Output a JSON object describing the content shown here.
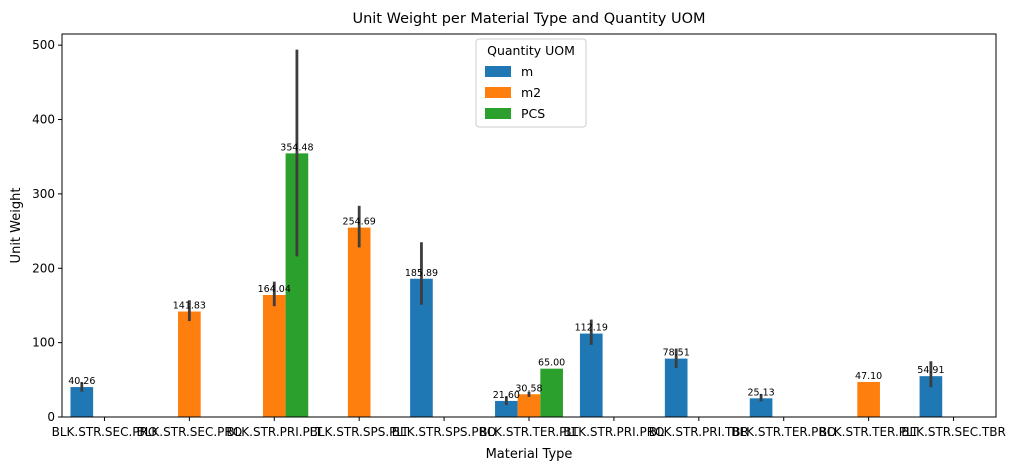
{
  "chart_data": {
    "type": "bar",
    "title": "Unit Weight per Material Type and Quantity UOM",
    "xlabel": "Material Type",
    "ylabel": "Unit Weight",
    "ylim": [
      0,
      515
    ],
    "yticks": [
      0,
      100,
      200,
      300,
      400,
      500
    ],
    "grid": false,
    "legend": {
      "title": "Quantity UOM",
      "placement": "upper-center"
    },
    "categories": [
      "BLK.STR.SEC.PRO",
      "BLK.STR.SEC.PRO",
      "BLK.STR.PRI.PLT",
      "BLK.STR.SPS.PLT",
      "BLK.STR.SPS.PRO",
      "BLK.STR.TER.PLT",
      "BLK.STR.PRI.PRO",
      "BLK.STR.PRI.TBR",
      "BLK.STR.TER.PRO",
      "BLK.STR.TER.PLT",
      "BLK.STR.SEC.TBR"
    ],
    "series": [
      {
        "name": "m",
        "color": "#1f77b4",
        "values": [
          40.26,
          null,
          null,
          null,
          185.89,
          21.6,
          112.19,
          78.51,
          25.13,
          null,
          54.91
        ],
        "err_low": [
          34,
          null,
          null,
          null,
          151,
          16,
          97,
          66,
          21,
          null,
          40
        ],
        "err_high": [
          47,
          null,
          null,
          null,
          235,
          28,
          131,
          92,
          31,
          null,
          75
        ]
      },
      {
        "name": "m2",
        "color": "#ff7f0e",
        "values": [
          null,
          141.83,
          164.04,
          254.69,
          null,
          30.58,
          null,
          null,
          null,
          47.1,
          null
        ],
        "err_low": [
          null,
          129,
          149,
          228,
          null,
          27,
          null,
          null,
          null,
          null,
          null
        ],
        "err_high": [
          null,
          157,
          182,
          284,
          null,
          34,
          null,
          null,
          null,
          null,
          null
        ]
      },
      {
        "name": "PCS",
        "color": "#2ca02c",
        "values": [
          null,
          null,
          354.48,
          null,
          null,
          65.0,
          null,
          null,
          null,
          null,
          null
        ],
        "err_low": [
          null,
          null,
          216,
          null,
          null,
          null,
          null,
          null,
          null,
          null,
          null
        ],
        "err_high": [
          null,
          null,
          494,
          null,
          null,
          null,
          null,
          null,
          null,
          null,
          null
        ]
      }
    ],
    "data_labels": [
      "40.26",
      "141.83",
      "164.04",
      "354.48",
      "254.69",
      "185.89",
      "21.60",
      "30.58",
      "65.00",
      "112.19",
      "78.51",
      "25.13",
      "47.10",
      "54.91"
    ]
  }
}
